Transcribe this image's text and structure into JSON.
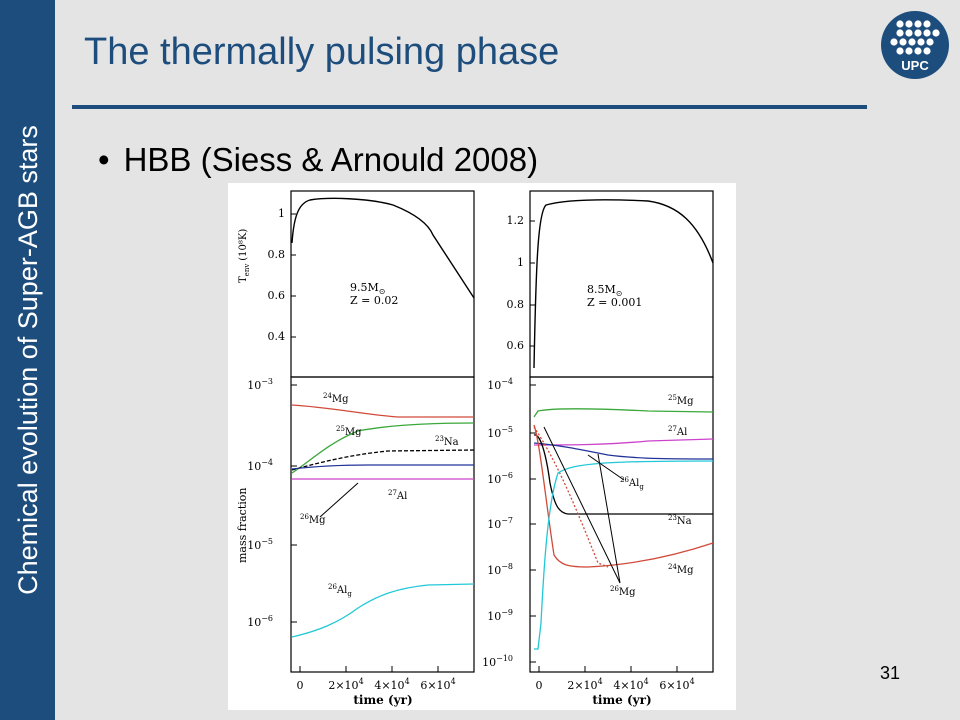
{
  "slide": {
    "sidebar_text": "Chemical evolution of Super-AGB stars",
    "title": "The thermally pulsing phase",
    "bullet": "HBB (Siess & Arnould 2008)",
    "page_number": "31",
    "logo_text": "UPC"
  },
  "colors": {
    "sidebar": "#1d4d7c",
    "title": "#1d4d7c",
    "background": "#e4e4e4",
    "red": "#d04a3a",
    "green": "#3aa83a",
    "black": "#000000",
    "blue": "#223399",
    "magenta": "#cc44cc",
    "cyan": "#22c8d8"
  },
  "figure": {
    "left_panel": {
      "top": {
        "ylabel": "T",
        "ylabel_sub": "env",
        "ylabel_unit": "(10⁸K)",
        "yticks": [
          "1",
          "0.8",
          "0.6",
          "0.4"
        ],
        "mass_label": "9.5M",
        "mass_sub": "⊙",
        "z_label": "Z = 0.02"
      },
      "bottom": {
        "ylabel": "mass fraction",
        "yticks": [
          {
            "base": "10",
            "exp": "−3"
          },
          {
            "base": "10",
            "exp": "−4"
          },
          {
            "base": "10",
            "exp": "−5"
          },
          {
            "base": "10",
            "exp": "−6"
          }
        ],
        "labels": [
          {
            "sup": "24",
            "el": "Mg",
            "sub": ""
          },
          {
            "sup": "25",
            "el": "Mg",
            "sub": ""
          },
          {
            "sup": "23",
            "el": "Na",
            "sub": ""
          },
          {
            "sup": "27",
            "el": "Al",
            "sub": ""
          },
          {
            "sup": "26",
            "el": "Mg",
            "sub": ""
          },
          {
            "sup": "26",
            "el": "Al",
            "sub": "g"
          }
        ],
        "xticks": [
          {
            "base": "0",
            "exp": ""
          },
          {
            "base": "2×10",
            "exp": "4"
          },
          {
            "base": "4×10",
            "exp": "4"
          },
          {
            "base": "6×10",
            "exp": "4"
          }
        ],
        "xlabel": "time (yr)"
      }
    },
    "right_panel": {
      "top": {
        "yticks": [
          "1.2",
          "1",
          "0.8",
          "0.6"
        ],
        "mass_label": "8.5M",
        "mass_sub": "⊙",
        "z_label": "Z = 0.001"
      },
      "bottom": {
        "yticks": [
          {
            "base": "10",
            "exp": "−4"
          },
          {
            "base": "10",
            "exp": "−5"
          },
          {
            "base": "10",
            "exp": "−6"
          },
          {
            "base": "10",
            "exp": "−7"
          },
          {
            "base": "10",
            "exp": "−8"
          },
          {
            "base": "10",
            "exp": "−9"
          },
          {
            "base": "10",
            "exp": "−10"
          }
        ],
        "labels": [
          {
            "sup": "25",
            "el": "Mg",
            "sub": ""
          },
          {
            "sup": "27",
            "el": "Al",
            "sub": ""
          },
          {
            "sup": "26",
            "el": "Al",
            "sub": "g"
          },
          {
            "sup": "23",
            "el": "Na",
            "sub": ""
          },
          {
            "sup": "24",
            "el": "Mg",
            "sub": ""
          },
          {
            "sup": "26",
            "el": "Mg",
            "sub": ""
          }
        ],
        "xticks": [
          {
            "base": "0",
            "exp": ""
          },
          {
            "base": "2×10",
            "exp": "4"
          },
          {
            "base": "4×10",
            "exp": "4"
          },
          {
            "base": "6×10",
            "exp": "4"
          }
        ],
        "xlabel": "time (yr)"
      }
    }
  }
}
